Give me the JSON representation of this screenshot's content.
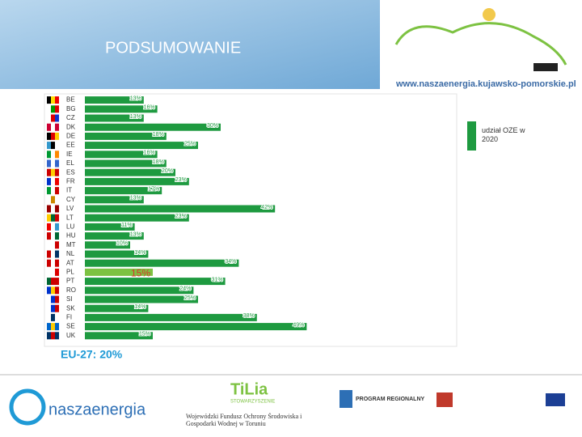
{
  "header": {
    "title": "PODSUMOWANIE",
    "url": "www.naszaenergia.kujawsko-pomorskie.pl"
  },
  "chart_data": {
    "type": "bar",
    "orientation": "horizontal",
    "categories": [
      "BE",
      "BG",
      "CZ",
      "DK",
      "DE",
      "EE",
      "IE",
      "EL",
      "ES",
      "FR",
      "IT",
      "CY",
      "LV",
      "LT",
      "LU",
      "HU",
      "MT",
      "NL",
      "AT",
      "PL",
      "PT",
      "RO",
      "SI",
      "SK",
      "FI",
      "SE",
      "UK"
    ],
    "series": [
      {
        "name": "udział OZE w 2020",
        "color": "#1e9a40",
        "values": [
          13,
          16,
          13,
          30,
          18,
          25,
          16,
          18,
          20,
          23,
          17,
          13,
          42,
          23,
          11,
          13,
          10,
          14,
          34,
          15,
          31,
          24,
          25,
          14,
          38,
          49,
          15
        ],
        "value_labels": [
          "13%",
          "16%",
          "13%",
          "30%",
          "18%",
          "25%",
          "16%",
          "18%",
          "20%",
          "23%",
          "17%",
          "13%",
          "42%",
          "23%",
          "11%",
          "13%",
          "10%",
          "14%",
          "34%",
          "15%",
          "31%",
          "24%",
          "25%",
          "14%",
          "38%",
          "49%",
          "15%"
        ],
        "colors": [
          "#1e9a40",
          "#1e9a40",
          "#1e9a40",
          "#1e9a40",
          "#1e9a40",
          "#1e9a40",
          "#1e9a40",
          "#1e9a40",
          "#1e9a40",
          "#1e9a40",
          "#1e9a40",
          "#1e9a40",
          "#1e9a40",
          "#1e9a40",
          "#1e9a40",
          "#1e9a40",
          "#1e9a40",
          "#1e9a40",
          "#1e9a40",
          "#7dc242",
          "#1e9a40",
          "#1e9a40",
          "#1e9a40",
          "#1e9a40",
          "#1e9a40",
          "#1e9a40",
          "#1e9a40"
        ],
        "value_label_colors": [
          "#1e9a40",
          "#1e9a40",
          "#1e9a40",
          "#1e9a40",
          "#1e9a40",
          "#1e9a40",
          "#1e9a40",
          "#1e9a40",
          "#1e9a40",
          "#1e9a40",
          "#1e9a40",
          "#1e9a40",
          "#1e9a40",
          "#1e9a40",
          "#1e9a40",
          "#1e9a40",
          "#1e9a40",
          "#1e9a40",
          "#1e9a40",
          "#d9342b",
          "#1e9a40",
          "#1e9a40",
          "#1e9a40",
          "#1e9a40",
          "#1e9a40",
          "#1e9a40",
          "#1e9a40"
        ]
      }
    ],
    "legend": "right",
    "annotation": "EU-27: 20%"
  },
  "footer": {
    "logo1": "naszaenergia",
    "logo2": "TiLia",
    "logo2_sub": "STOWARZYSZENIE",
    "fund": "Wojewódzki Fundusz Ochrony Środowiska i Gospodarki Wodnej w Toruniu",
    "program": "PROGRAM REGIONALNY"
  }
}
